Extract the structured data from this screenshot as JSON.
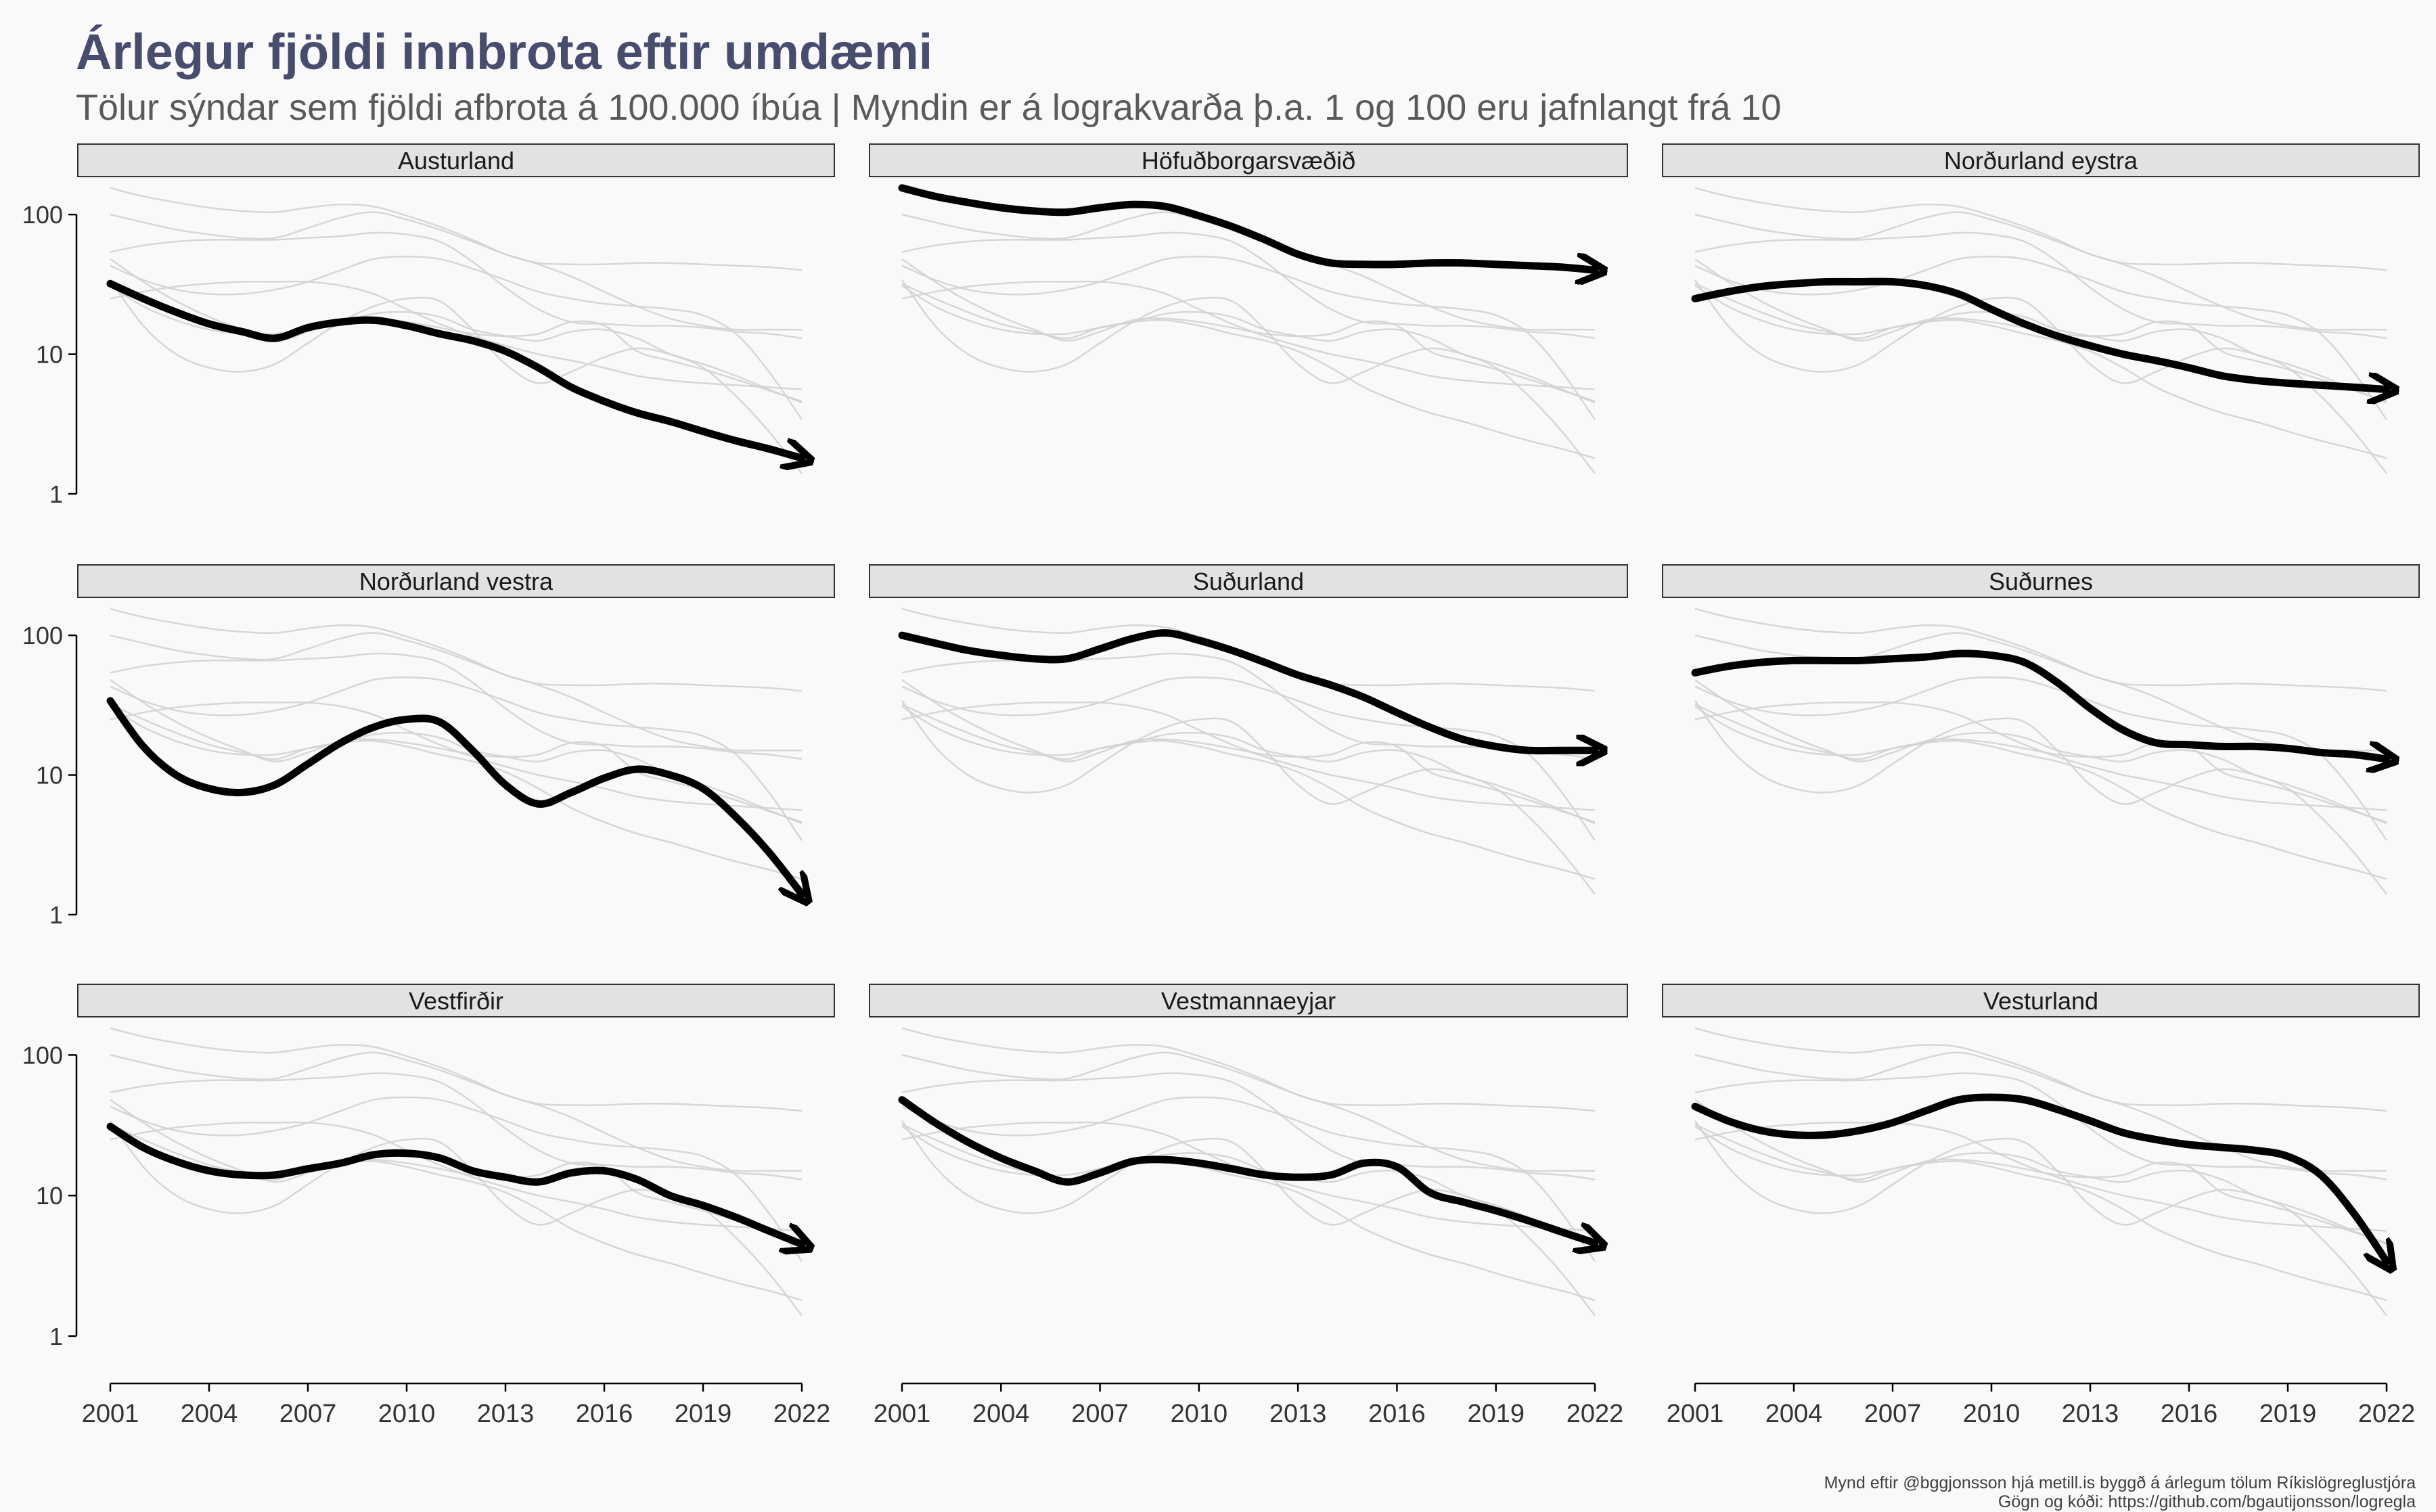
{
  "title": "Árlegur fjöldi innbrota eftir umdæmi",
  "subtitle": "Tölur sýndar sem fjöldi afbrota á 100.000 íbúa | Myndin er á lograkvarða þ.a. 1 og 100 eru jafnlangt frá 10",
  "caption_line1": "Mynd eftir @bggjonsson hjá metill.is byggð á árlegum tölum Ríkislögreglustjóra",
  "caption_line2": "Gögn og kóði: https://github.com/bgautijonsson/logregla",
  "colors": {
    "highlight": "#000000",
    "background_lines": "#d3d3d3",
    "strip_fill": "#e2e2e2",
    "title": "#484d6d"
  },
  "chart_data": {
    "type": "line",
    "facet": "small-multiples 3x3, highlighted region in black, all other regions in light grey",
    "y_scale": "log10",
    "ylim": [
      1,
      160
    ],
    "xlim": [
      2001,
      2022
    ],
    "x_ticks": [
      2001,
      2004,
      2007,
      2010,
      2013,
      2016,
      2019,
      2022
    ],
    "y_ticks": [
      1,
      10,
      100
    ],
    "x": [
      2001,
      2002,
      2003,
      2004,
      2005,
      2006,
      2007,
      2008,
      2009,
      2010,
      2011,
      2012,
      2013,
      2014,
      2015,
      2016,
      2017,
      2018,
      2019,
      2020,
      2021,
      2022
    ],
    "series": [
      {
        "name": "Austurland",
        "values": [
          32,
          25,
          20,
          16.5,
          14.5,
          13,
          15.5,
          17,
          17.5,
          16,
          14,
          12.5,
          10.5,
          8,
          5.8,
          4.6,
          3.8,
          3.3,
          2.8,
          2.4,
          2.1,
          1.8
        ]
      },
      {
        "name": "Höfuðborgarsvæðið",
        "values": [
          155,
          135,
          122,
          112,
          106,
          104,
          112,
          118,
          114,
          98,
          82,
          66,
          52,
          45,
          44,
          44,
          45,
          45,
          44,
          43,
          42,
          40
        ]
      },
      {
        "name": "Norðurland eystra",
        "values": [
          25,
          28,
          30.5,
          32,
          33,
          33,
          33,
          31,
          27,
          21,
          16.5,
          13.5,
          11.5,
          10,
          9,
          8,
          7,
          6.5,
          6.2,
          6,
          5.8,
          5.6
        ]
      },
      {
        "name": "Norðurland vestra",
        "values": [
          34,
          16,
          10,
          8,
          7.5,
          8.5,
          12,
          17,
          22,
          25,
          24,
          15,
          8.5,
          6.2,
          7.5,
          9.5,
          11,
          10,
          8,
          5,
          2.8,
          1.4
        ]
      },
      {
        "name": "Suðurland",
        "values": [
          100,
          88,
          78,
          72,
          68,
          68,
          80,
          95,
          104,
          92,
          78,
          64,
          52,
          44,
          36,
          28,
          22,
          18,
          16,
          15,
          15,
          15
        ]
      },
      {
        "name": "Suðurnes",
        "values": [
          54,
          60,
          64,
          66,
          66,
          66,
          68,
          70,
          74,
          72,
          64,
          46,
          30,
          21,
          17,
          16.5,
          16,
          16,
          15.5,
          14.5,
          14,
          13
        ]
      },
      {
        "name": "Vestfirðir",
        "values": [
          31,
          22,
          17.5,
          15,
          14,
          14,
          15.5,
          17,
          19.5,
          20,
          18.5,
          15,
          13.5,
          12.5,
          14.5,
          15,
          13,
          10,
          8.5,
          7,
          5.6,
          4.5
        ]
      },
      {
        "name": "Vestmannaeyjar",
        "values": [
          48,
          33,
          24,
          18.5,
          15,
          12.5,
          14.5,
          17.5,
          18,
          17,
          15.5,
          14,
          13.5,
          14,
          17,
          16,
          10.5,
          9,
          7.8,
          6.6,
          5.5,
          4.6
        ]
      },
      {
        "name": "Vesturland",
        "values": [
          43,
          34,
          29,
          27,
          27,
          29,
          33,
          40,
          48,
          50,
          48,
          41,
          34,
          28,
          25,
          23,
          22,
          21,
          19,
          14,
          7.5,
          3.4
        ]
      }
    ]
  }
}
